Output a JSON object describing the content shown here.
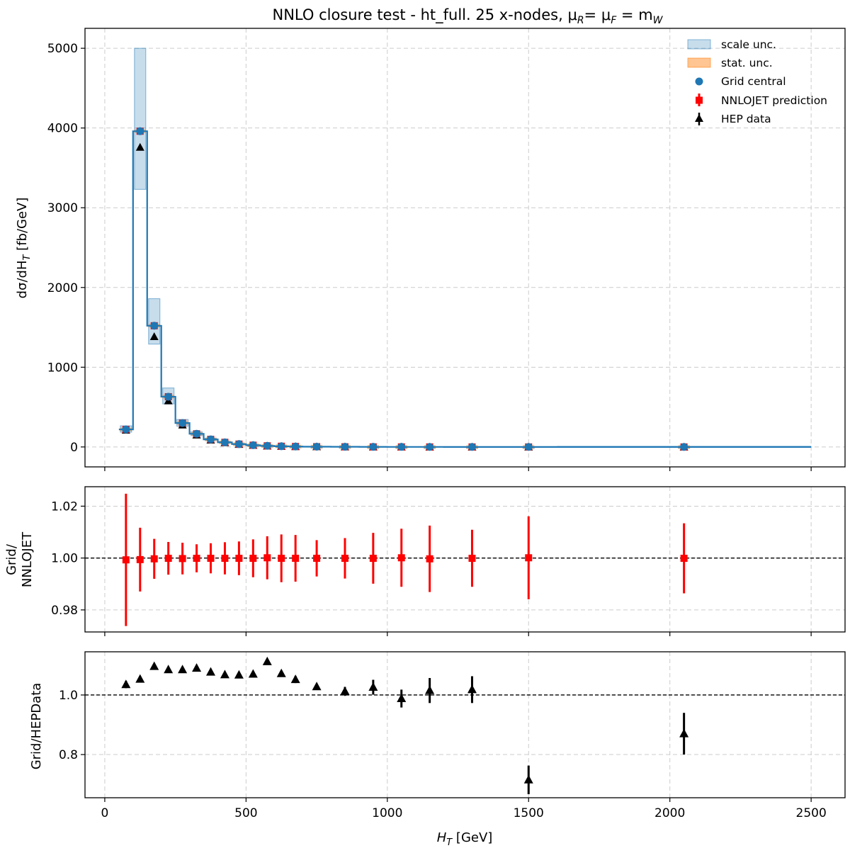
{
  "title": "NNLO closure test  -  ht_full. 25 x-nodes, μ",
  "title_parts": [
    "NNLO closure test  -  ht_full. 25 x-nodes, μ",
    "R",
    "= μ",
    "F",
    " = m",
    "W"
  ],
  "colors": {
    "scale_band": "#1f77b4",
    "stat_band": "#ff7f0e",
    "grid_central": "#1f77b4",
    "nnlojet": "#ff0000",
    "hep": "#000000",
    "grid": "#cccccc"
  },
  "legend": {
    "scale": "scale unc.",
    "stat": "stat. unc.",
    "grid": "Grid central",
    "nnlojet": "NNLOJET prediction",
    "hep": "HEP data"
  },
  "chart_data": [
    {
      "type": "scatter",
      "panel": "main",
      "ylabel": "dσ/dH",
      "ylabel_sub": "T",
      "ylabel_unit": "[fb/GeV]",
      "xlim": [
        -70,
        2620
      ],
      "ylim": [
        -250,
        5250
      ],
      "xticks": [
        0,
        500,
        1000,
        1500,
        2000,
        2500
      ],
      "yticks": [
        0,
        1000,
        2000,
        3000,
        4000,
        5000
      ],
      "grid": true,
      "legend_position": "top-right",
      "x": [
        75,
        125,
        175,
        225,
        275,
        325,
        375,
        425,
        475,
        525,
        575,
        625,
        675,
        750,
        850,
        950,
        1050,
        1150,
        1300,
        1500,
        2050
      ],
      "bin_edges": [
        50,
        100,
        150,
        200,
        250,
        300,
        350,
        400,
        450,
        500,
        550,
        600,
        650,
        700,
        800,
        900,
        1000,
        1100,
        1200,
        1400,
        1600,
        2500
      ],
      "grid_central": [
        220,
        3960,
        1520,
        630,
        300,
        165,
        95,
        58,
        36,
        22,
        14,
        9,
        6,
        3.5,
        1.8,
        0.9,
        0.5,
        0.25,
        0.1,
        0.03,
        0.003
      ],
      "scale_unc_low": [
        185,
        3230,
        1290,
        540,
        260,
        142,
        82,
        50,
        31,
        19,
        12,
        7.8,
        5.2,
        3.0,
        1.5,
        0.75,
        0.42,
        0.21,
        0.08,
        0.025,
        0.002
      ],
      "scale_unc_high": [
        265,
        5000,
        1860,
        740,
        345,
        190,
        110,
        67,
        42,
        26,
        16.5,
        10.5,
        7,
        4.1,
        2.1,
        1.05,
        0.6,
        0.3,
        0.12,
        0.036,
        0.004
      ],
      "nnlojet": [
        220,
        3960,
        1520,
        630,
        300,
        165,
        95,
        58,
        36,
        22,
        14,
        9,
        6,
        3.5,
        1.8,
        0.9,
        0.5,
        0.25,
        0.1,
        0.03,
        0.003
      ],
      "hep_data": [
        212,
        3760,
        1385,
        580,
        276,
        151,
        88,
        54,
        33.7,
        20.5,
        12.5,
        8.4,
        5.7,
        3.4,
        1.78,
        0.87,
        0.5,
        0.245,
        0.098,
        0.042,
        0.0034
      ]
    },
    {
      "type": "scatter",
      "panel": "ratio_nnlojet",
      "ylabel": [
        "Grid/",
        "NNLOJET"
      ],
      "ylim": [
        0.9715,
        1.0275
      ],
      "yticks": [
        0.98,
        1.0,
        1.02
      ],
      "ytick_labels": [
        "0.98",
        "1.00",
        "1.02"
      ],
      "reference_line": 1.0,
      "grid": true,
      "x": [
        75,
        125,
        175,
        225,
        275,
        325,
        375,
        425,
        475,
        525,
        575,
        625,
        675,
        750,
        850,
        950,
        1050,
        1150,
        1300,
        1500,
        2050
      ],
      "ratio": [
        0.9993,
        0.9994,
        0.9997,
        0.9999,
        0.9998,
        0.9999,
        0.9999,
        0.9999,
        0.9999,
        0.9999,
        1.0001,
        0.9999,
        0.9999,
        0.9999,
        0.9999,
        0.9999,
        1.0001,
        0.9997,
        0.9999,
        1.0001,
        0.9999
      ],
      "err": [
        0.0255,
        0.0123,
        0.0077,
        0.0063,
        0.0061,
        0.0054,
        0.0058,
        0.0062,
        0.0065,
        0.0073,
        0.0083,
        0.0092,
        0.009,
        0.007,
        0.0078,
        0.0098,
        0.0112,
        0.0128,
        0.011,
        0.016,
        0.0135
      ]
    },
    {
      "type": "scatter",
      "panel": "ratio_hepdata",
      "ylabel": "Grid/HEPData",
      "xlabel": "H",
      "xlabel_sub": "T",
      "xlabel_unit": "[GeV]",
      "ylim": [
        0.655,
        1.145
      ],
      "yticks": [
        0.8,
        1.0
      ],
      "ytick_labels": [
        "0.8",
        "1.0"
      ],
      "reference_line": 1.0,
      "grid": true,
      "x": [
        75,
        125,
        175,
        225,
        275,
        325,
        375,
        425,
        475,
        525,
        575,
        625,
        675,
        750,
        850,
        950,
        1050,
        1150,
        1300,
        1500,
        2050
      ],
      "ratio": [
        1.035,
        1.053,
        1.096,
        1.085,
        1.085,
        1.09,
        1.077,
        1.068,
        1.067,
        1.07,
        1.112,
        1.072,
        1.052,
        1.028,
        1.012,
        1.026,
        0.988,
        1.015,
        1.018,
        0.715,
        0.87
      ],
      "err": [
        0.012,
        0.008,
        0.006,
        0.006,
        0.006,
        0.006,
        0.006,
        0.007,
        0.007,
        0.008,
        0.009,
        0.01,
        0.012,
        0.01,
        0.015,
        0.025,
        0.03,
        0.042,
        0.045,
        0.048,
        0.07
      ]
    }
  ]
}
